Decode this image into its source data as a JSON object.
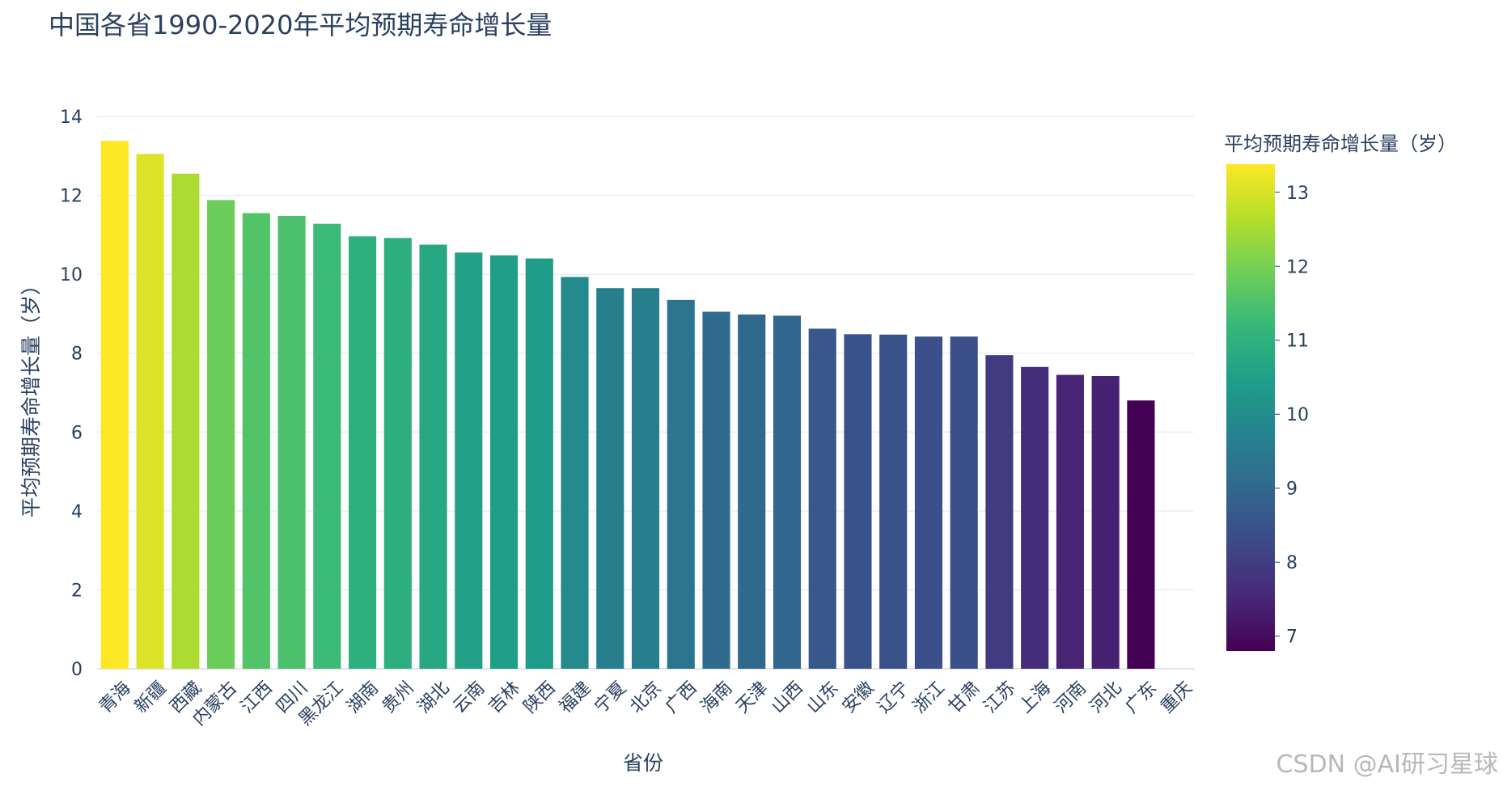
{
  "watermark": "CSDN @AI研习星球",
  "chart_data": {
    "type": "bar",
    "title": "中国各省1990-2020年平均预期寿命增长量",
    "xlabel": "省份",
    "ylabel": "平均预期寿命增长量（岁）",
    "ylim": [
      0,
      14
    ],
    "yticks": [
      0,
      2,
      4,
      6,
      8,
      10,
      12,
      14
    ],
    "grid": true,
    "categories": [
      "青海",
      "新疆",
      "西藏",
      "内蒙古",
      "江西",
      "四川",
      "黑龙江",
      "湖南",
      "贵州",
      "湖北",
      "云南",
      "吉林",
      "陕西",
      "福建",
      "宁夏",
      "北京",
      "广西",
      "海南",
      "天津",
      "山西",
      "山东",
      "安徽",
      "辽宁",
      "浙江",
      "甘肃",
      "江苏",
      "上海",
      "河南",
      "河北",
      "广东",
      "重庆"
    ],
    "values": [
      13.38,
      13.05,
      12.55,
      11.88,
      11.55,
      11.48,
      11.28,
      10.96,
      10.92,
      10.75,
      10.55,
      10.48,
      10.4,
      9.93,
      9.65,
      9.65,
      9.35,
      9.05,
      8.98,
      8.95,
      8.62,
      8.48,
      8.47,
      8.42,
      8.42,
      7.95,
      7.65,
      7.45,
      7.42,
      6.8,
      null
    ],
    "colorbar": {
      "title": "平均预期寿命增长量（岁）",
      "colorscale": "Viridis",
      "range": [
        6.8,
        13.38
      ],
      "ticks": [
        7,
        8,
        9,
        10,
        11,
        12,
        13
      ]
    }
  }
}
